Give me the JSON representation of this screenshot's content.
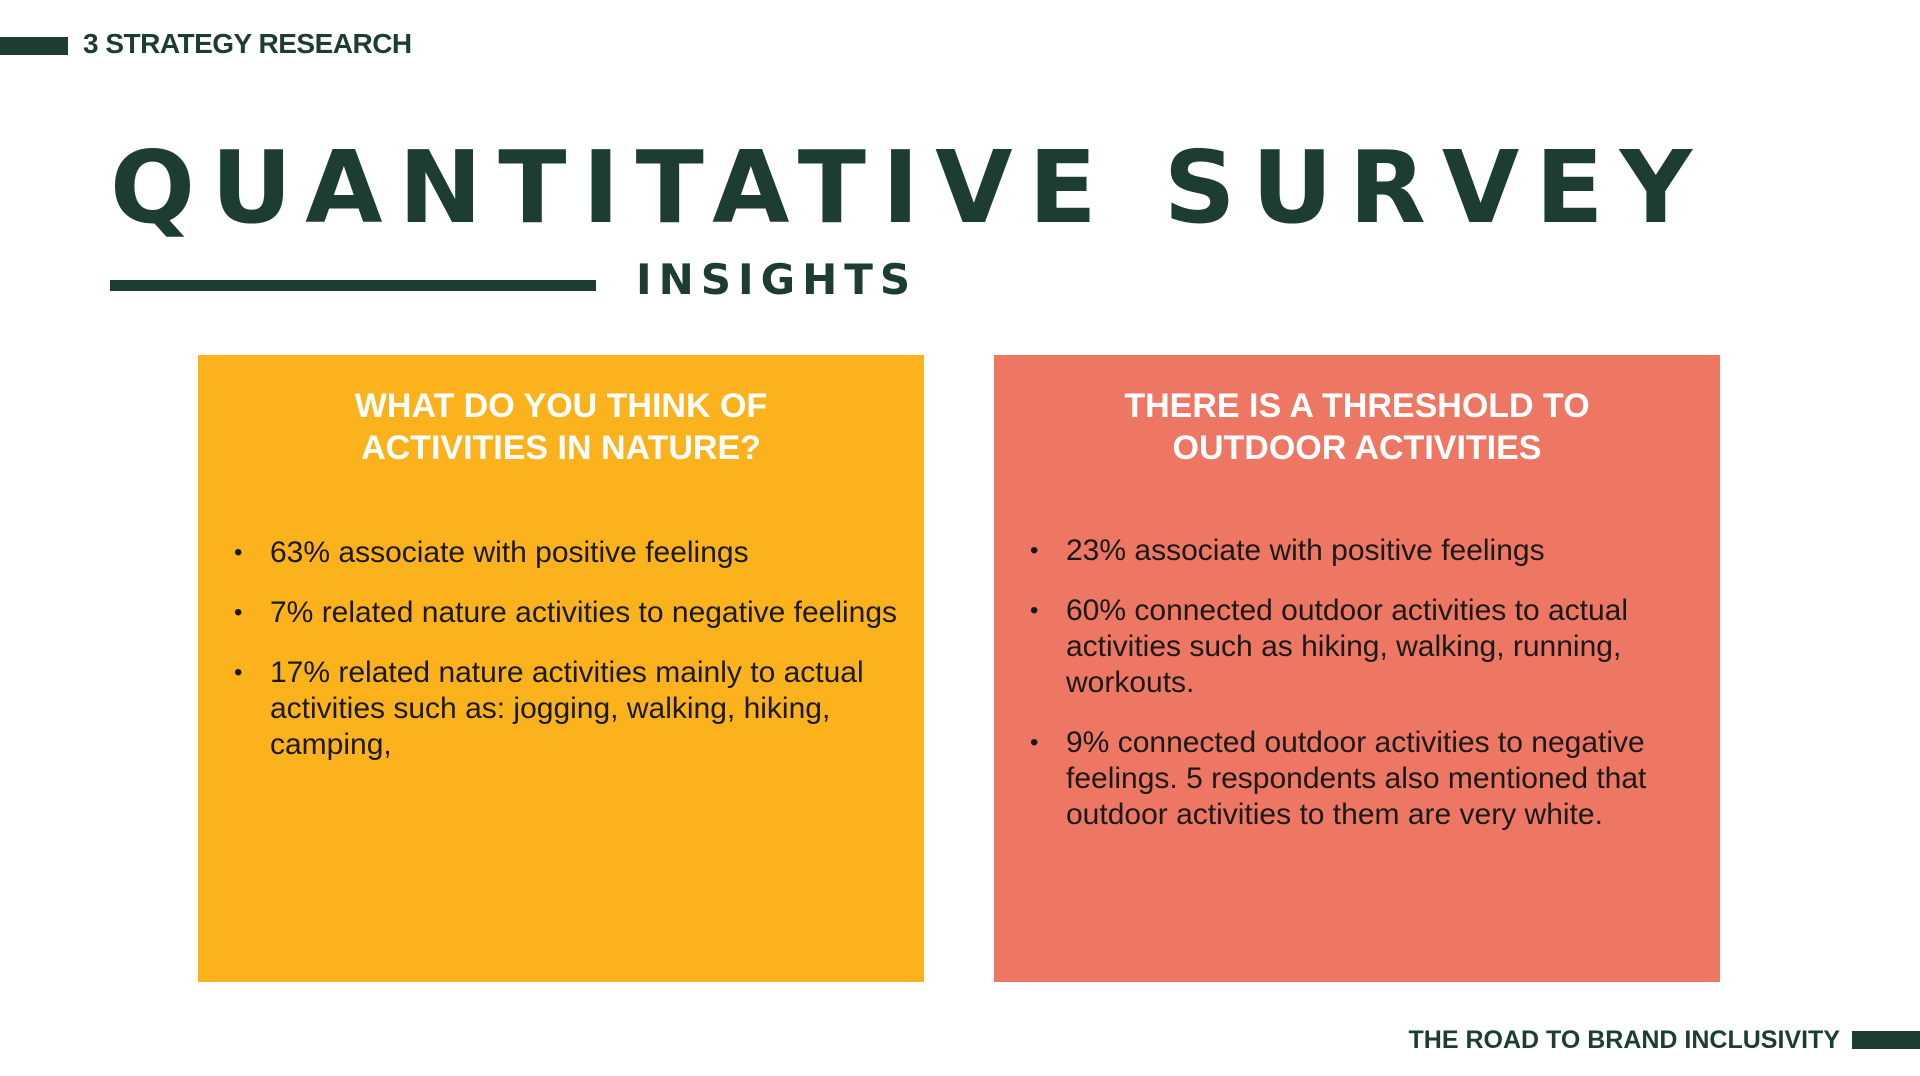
{
  "header": {
    "section_label": "3 STRATEGY RESEARCH",
    "title": "QUANTITATIVE SURVEY",
    "subtitle": "INSIGHTS"
  },
  "cards": [
    {
      "heading_lines": [
        "WHAT DO YOU THINK OF",
        "ACTIVITIES IN NATURE?"
      ],
      "bullets": [
        "63% associate with positive feelings",
        "7% related nature activities to negative feelings",
        "17% related nature activities mainly to actual activities such as: jogging, walking, hiking, camping,"
      ]
    },
    {
      "heading_lines": [
        "THERE IS A THRESHOLD TO",
        "OUTDOOR ACTIVITIES"
      ],
      "bullets": [
        "23% associate with positive feelings",
        "60% connected outdoor activities to actual activities such as hiking, walking, running, workouts.",
        "9% connected outdoor activities to negative feelings. 5 respondents also mentioned that outdoor activities to them are very white."
      ]
    }
  ],
  "footer": {
    "label": "THE ROAD TO BRAND INCLUSIVITY"
  },
  "colors": {
    "brand_dark_green": "#1d3d33",
    "card_left_yellow": "#fbb21d",
    "card_right_coral": "#ee7763",
    "heading_white": "#ffffff"
  },
  "bullet_glyph": "•"
}
